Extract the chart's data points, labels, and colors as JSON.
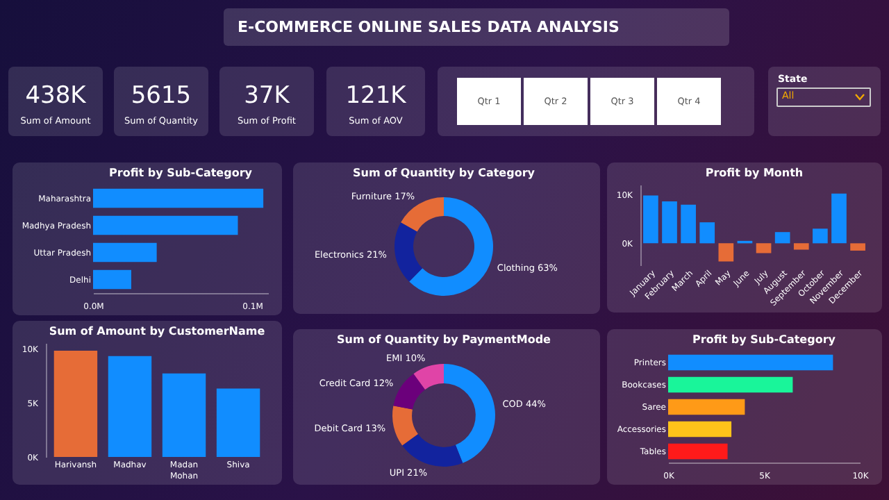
{
  "chart_data": [
    {
      "type": "other",
      "title": "E-COMMERCE ONLINE SALES DATA ANALYSIS",
      "annotations": [
        "438K",
        "Sum of Amount",
        "5615",
        "Sum of Quantity",
        "37K",
        "Sum of Profit",
        "121K",
        "Sum of AOV",
        "Qtr 1",
        "Qtr 2",
        "Qtr 3",
        "Qtr 4",
        "State",
        "All"
      ]
    },
    {
      "type": "bar",
      "orientation": "horizontal",
      "title": "Profit by Sub-Category",
      "categories": [
        "Maharashtra",
        "Madhya Pradesh",
        "Uttar Pradesh",
        "Delhi"
      ],
      "values": [
        0.107,
        0.091,
        0.04,
        0.024
      ],
      "color": "#118dff",
      "xlim": [
        0,
        0.11
      ],
      "xticks": [
        {
          "value": 0,
          "label": "0.0M"
        },
        {
          "value": 0.1,
          "label": "0.1M"
        }
      ]
    },
    {
      "type": "donut",
      "title": "Sum of Quantity by Category",
      "categories": [
        "Clothing",
        "Electronics",
        "Furniture"
      ],
      "values": [
        63,
        21,
        17
      ],
      "value_labels": [
        "63%",
        "21%",
        "17%"
      ],
      "colors": [
        "#118dff",
        "#12239e",
        "#e66c37"
      ]
    },
    {
      "type": "bar",
      "title": "Profit by Month",
      "categories": [
        "January",
        "February",
        "March",
        "April",
        "May",
        "June",
        "July",
        "August",
        "September",
        "October",
        "November",
        "December"
      ],
      "values": [
        9800,
        8600,
        7900,
        4300,
        -3700,
        500,
        -2000,
        2300,
        -1300,
        3000,
        10200,
        -1500
      ],
      "colors": [
        "#118dff",
        "#118dff",
        "#118dff",
        "#118dff",
        "#e66c37",
        "#118dff",
        "#e66c37",
        "#118dff",
        "#e66c37",
        "#118dff",
        "#118dff",
        "#e66c37"
      ],
      "ylim": [
        -4500,
        12000
      ],
      "yticks": [
        {
          "value": 0,
          "label": "0K"
        },
        {
          "value": 10000,
          "label": "10K"
        }
      ]
    },
    {
      "type": "bar",
      "title": "Sum of Amount by CustomerName",
      "categories": [
        "Harivansh",
        "Madhav",
        "Madan Mohan",
        "Shiva"
      ],
      "values": [
        9800,
        9300,
        7700,
        6300
      ],
      "colors": [
        "#e66c37",
        "#118dff",
        "#118dff",
        "#118dff"
      ],
      "ylim": [
        0,
        10500
      ],
      "yticks": [
        {
          "value": 0,
          "label": "0K"
        },
        {
          "value": 5000,
          "label": "5K"
        },
        {
          "value": 10000,
          "label": "10K"
        }
      ]
    },
    {
      "type": "donut",
      "title": "Sum of Quantity by PaymentMode",
      "categories": [
        "COD",
        "UPI",
        "Debit Card",
        "Credit Card",
        "EMI"
      ],
      "values": [
        44,
        21,
        13,
        12,
        10
      ],
      "value_labels": [
        "44%",
        "21%",
        "13%",
        "12%",
        "10%"
      ],
      "colors": [
        "#118dff",
        "#12239e",
        "#e66c37",
        "#6b007b",
        "#e044a7"
      ]
    },
    {
      "type": "bar",
      "orientation": "horizontal",
      "title": "Profit by Sub-Category",
      "categories": [
        "Printers",
        "Bookcases",
        "Saree",
        "Accessories",
        "Tables"
      ],
      "values": [
        8600,
        6500,
        4000,
        3300,
        3100
      ],
      "colors": [
        "#118dff",
        "#19f59a",
        "#ff9a17",
        "#ffc31a",
        "#ff1a1a"
      ],
      "xlim": [
        0,
        10000
      ],
      "xticks": [
        {
          "value": 0,
          "label": "0K"
        },
        {
          "value": 5000,
          "label": "5K"
        },
        {
          "value": 10000,
          "label": "10K"
        }
      ]
    }
  ]
}
